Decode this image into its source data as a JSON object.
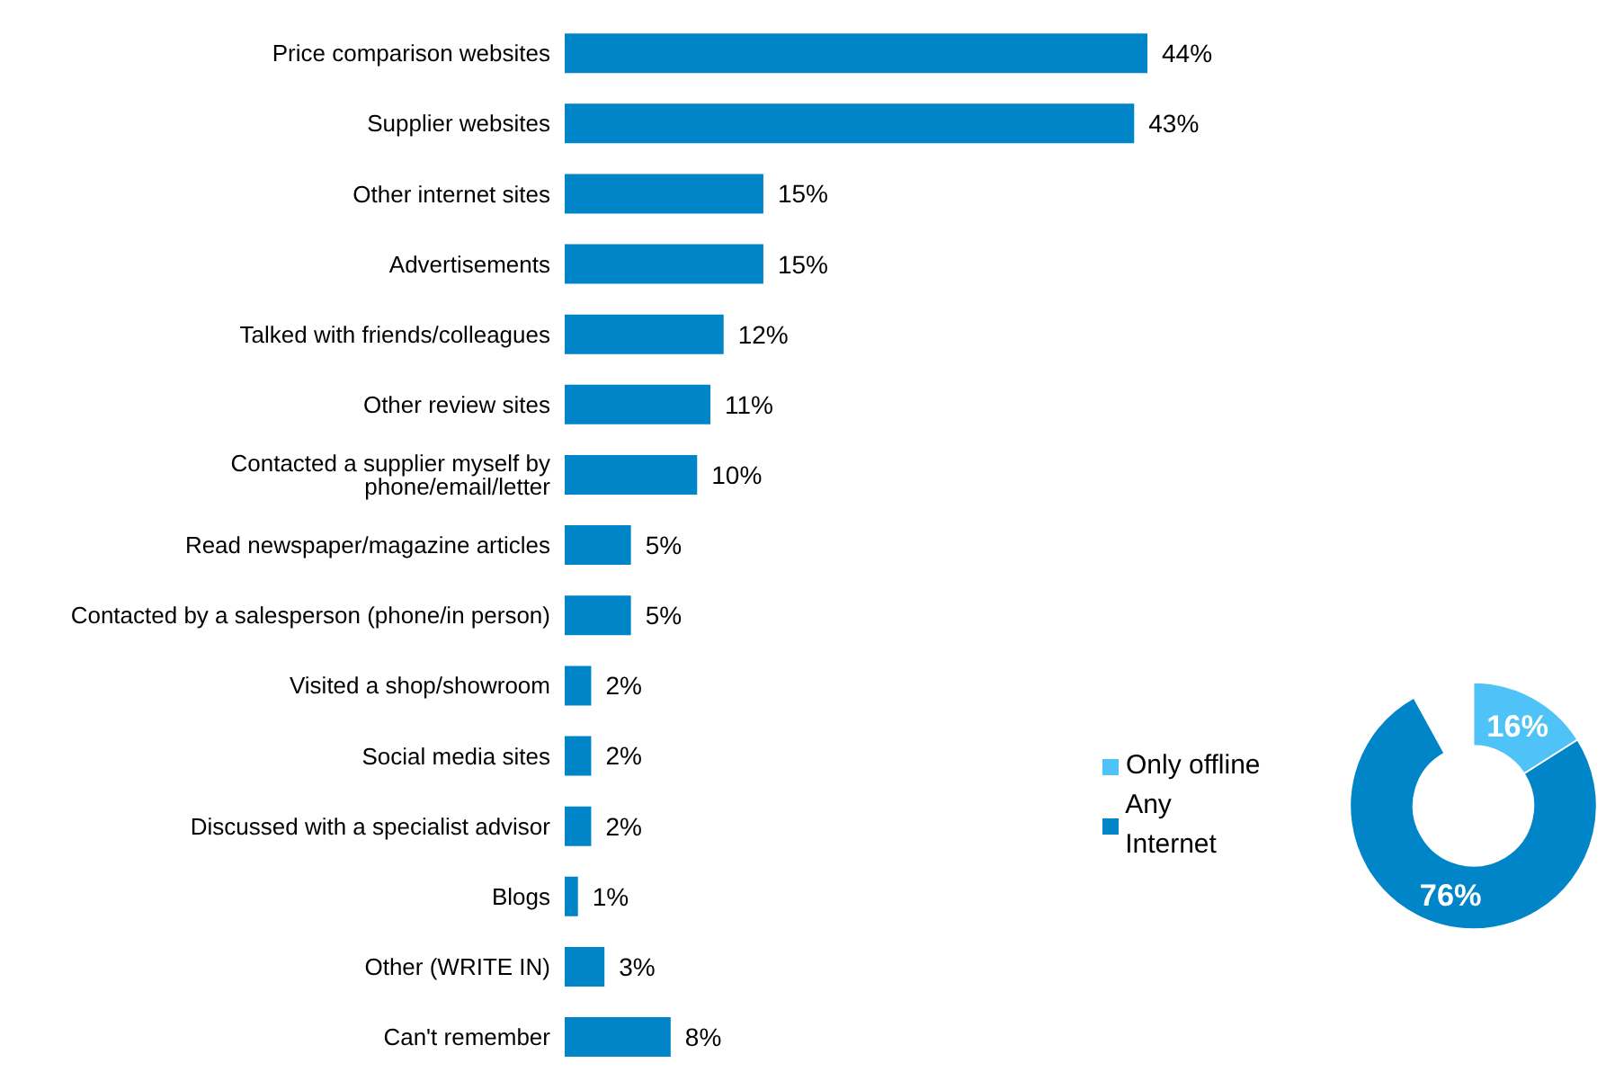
{
  "chart_data": [
    {
      "type": "bar",
      "orientation": "horizontal",
      "categories": [
        "Price comparison websites",
        "Supplier websites",
        "Other internet sites",
        "Advertisements",
        "Talked with friends/colleagues",
        "Other review sites",
        "Contacted a supplier myself by phone/email/letter",
        "Read newspaper/magazine articles",
        "Contacted by a salesperson (phone/in person)",
        "Visited a shop/showroom",
        "Social media sites",
        "Discussed with a specialist advisor",
        "Blogs",
        "Other (WRITE IN)",
        "Can't remember"
      ],
      "values": [
        44,
        43,
        15,
        15,
        12,
        11,
        10,
        5,
        5,
        2,
        2,
        2,
        1,
        3,
        8
      ],
      "value_labels": [
        "44%",
        "43%",
        "15%",
        "15%",
        "12%",
        "11%",
        "10%",
        "5%",
        "5%",
        "2%",
        "2%",
        "2%",
        "1%",
        "3%",
        "8%"
      ],
      "color": "#0085c8"
    },
    {
      "type": "donut",
      "categories": [
        "Only offline",
        "Any Internet"
      ],
      "values": [
        16,
        76
      ],
      "value_labels": [
        "16%",
        "76%"
      ],
      "colors": [
        "#4fc3f7",
        "#0085c8"
      ],
      "legend": "left"
    }
  ]
}
